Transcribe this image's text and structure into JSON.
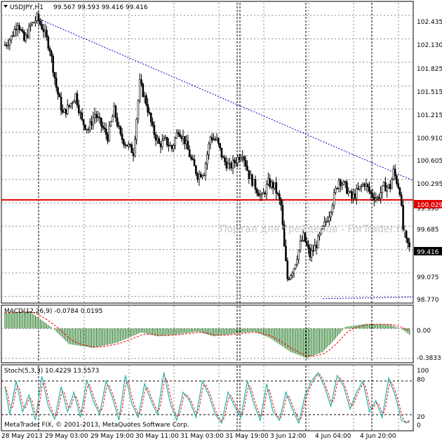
{
  "main": {
    "symbol": "USDJPY,H1",
    "ohlc": "99.567 99.593 99.416 99.416",
    "watermark": "Портал для трейдеров - ForTrader.ru",
    "price_labels": [
      "102.435",
      "102.130",
      "101.825",
      "101.515",
      "101.215",
      "100.910",
      "100.605",
      "100.295",
      "99.990",
      "99.685",
      "99.380",
      "99.075",
      "98.770"
    ],
    "hline": {
      "value": 100.029,
      "label": "100.029",
      "color": "#e00000"
    },
    "last": {
      "value": 99.416,
      "label": "99.416"
    },
    "trendline_upper": {
      "from": 102.4,
      "to": 100.28,
      "color": "#0000c0"
    },
    "trendline_lower": {
      "from": 98.74,
      "to": 98.76,
      "color": "#0000c0"
    }
  },
  "macd": {
    "title": "MACD(12,26,9) -0.0784 0.0195",
    "levels": [
      "0.00",
      "-0.3833"
    ],
    "bar_color": "#006400",
    "signal_color": "#ff0000"
  },
  "stoch": {
    "title": "Stoch(5,3,3) 10.4229 13.5573",
    "levels": [
      "100",
      "80",
      "20",
      "0"
    ],
    "main_color": "#20b2aa",
    "signal_color": "#ff0000"
  },
  "copyright": "MetaTrader FIX, © 2001-2013, MetaQuotes Software Corp.",
  "time_labels": [
    "28 May 2013",
    "29 May 03:00",
    "29 May 19:00",
    "30 May 11:00",
    "31 May 03:00",
    "31 May 19:00",
    "3 Jun 12:00",
    "4 Jun 04:00",
    "4 Jun 20:00"
  ],
  "chart_data": {
    "type": "candlestick",
    "title": "USDJPY,H1",
    "ylim": [
      98.7,
      102.6
    ],
    "anchors": [
      [
        0,
        102.05
      ],
      [
        4,
        102.15
      ],
      [
        8,
        102.35
      ],
      [
        12,
        102.1
      ],
      [
        16,
        102.3
      ],
      [
        20,
        102.4
      ],
      [
        24,
        102.25
      ],
      [
        28,
        102.0
      ],
      [
        32,
        101.5
      ],
      [
        36,
        101.15
      ],
      [
        40,
        101.25
      ],
      [
        44,
        101.4
      ],
      [
        48,
        101.05
      ],
      [
        52,
        100.95
      ],
      [
        56,
        101.15
      ],
      [
        60,
        101.0
      ],
      [
        64,
        100.85
      ],
      [
        68,
        101.2
      ],
      [
        72,
        100.85
      ],
      [
        76,
        100.75
      ],
      [
        80,
        100.65
      ],
      [
        84,
        101.55
      ],
      [
        88,
        101.3
      ],
      [
        92,
        100.95
      ],
      [
        96,
        100.75
      ],
      [
        100,
        100.8
      ],
      [
        104,
        100.7
      ],
      [
        108,
        100.95
      ],
      [
        112,
        100.8
      ],
      [
        116,
        100.55
      ],
      [
        120,
        100.35
      ],
      [
        124,
        100.4
      ],
      [
        128,
        100.85
      ],
      [
        132,
        100.8
      ],
      [
        136,
        100.55
      ],
      [
        140,
        100.45
      ],
      [
        144,
        100.55
      ],
      [
        148,
        100.65
      ],
      [
        152,
        100.35
      ],
      [
        156,
        100.2
      ],
      [
        160,
        100.05
      ],
      [
        164,
        100.25
      ],
      [
        168,
        100.2
      ],
      [
        172,
        99.95
      ],
      [
        174,
        99.4
      ],
      [
        176,
        99.0
      ],
      [
        180,
        99.15
      ],
      [
        184,
        99.45
      ],
      [
        186,
        99.55
      ],
      [
        190,
        99.3
      ],
      [
        194,
        99.45
      ],
      [
        198,
        99.65
      ],
      [
        202,
        99.85
      ],
      [
        204,
        100.0
      ],
      [
        208,
        100.3
      ],
      [
        212,
        100.2
      ],
      [
        216,
        100.05
      ],
      [
        220,
        100.15
      ],
      [
        224,
        100.25
      ],
      [
        228,
        100.1
      ],
      [
        232,
        100.05
      ],
      [
        236,
        100.2
      ],
      [
        240,
        100.2
      ],
      [
        242,
        100.4
      ],
      [
        246,
        100.15
      ],
      [
        248,
        99.65
      ],
      [
        250,
        99.48
      ],
      [
        252,
        99.416
      ]
    ],
    "macd_anchors": [
      [
        0,
        0.2
      ],
      [
        15,
        0.22
      ],
      [
        20,
        0.15
      ],
      [
        30,
        0.0
      ],
      [
        40,
        -0.2
      ],
      [
        55,
        -0.25
      ],
      [
        70,
        -0.18
      ],
      [
        85,
        -0.05
      ],
      [
        95,
        -0.1
      ],
      [
        105,
        -0.08
      ],
      [
        120,
        -0.04
      ],
      [
        130,
        -0.1
      ],
      [
        145,
        -0.06
      ],
      [
        155,
        -0.04
      ],
      [
        165,
        -0.12
      ],
      [
        178,
        -0.3
      ],
      [
        188,
        -0.38
      ],
      [
        198,
        -0.3
      ],
      [
        205,
        -0.15
      ],
      [
        212,
        0.02
      ],
      [
        225,
        0.06
      ],
      [
        240,
        0.05
      ],
      [
        248,
        -0.02
      ],
      [
        252,
        -0.0784
      ]
    ],
    "macd_ylim": [
      -0.42,
      0.28
    ],
    "stoch_anchors": [
      [
        0,
        70
      ],
      [
        3,
        20
      ],
      [
        7,
        80
      ],
      [
        11,
        25
      ],
      [
        15,
        55
      ],
      [
        19,
        10
      ],
      [
        23,
        88
      ],
      [
        27,
        35
      ],
      [
        31,
        12
      ],
      [
        35,
        70
      ],
      [
        39,
        25
      ],
      [
        43,
        60
      ],
      [
        47,
        15
      ],
      [
        51,
        82
      ],
      [
        55,
        45
      ],
      [
        59,
        20
      ],
      [
        63,
        80
      ],
      [
        67,
        50
      ],
      [
        71,
        10
      ],
      [
        75,
        90
      ],
      [
        79,
        40
      ],
      [
        83,
        15
      ],
      [
        87,
        75
      ],
      [
        91,
        45
      ],
      [
        95,
        20
      ],
      [
        99,
        95
      ],
      [
        103,
        40
      ],
      [
        107,
        10
      ],
      [
        111,
        60
      ],
      [
        115,
        45
      ],
      [
        119,
        15
      ],
      [
        123,
        80
      ],
      [
        127,
        55
      ],
      [
        131,
        20
      ],
      [
        135,
        5
      ],
      [
        139,
        60
      ],
      [
        143,
        35
      ],
      [
        147,
        15
      ],
      [
        151,
        80
      ],
      [
        155,
        40
      ],
      [
        159,
        10
      ],
      [
        163,
        75
      ],
      [
        167,
        25
      ],
      [
        171,
        10
      ],
      [
        175,
        60
      ],
      [
        179,
        30
      ],
      [
        183,
        5
      ],
      [
        187,
        55
      ],
      [
        191,
        80
      ],
      [
        195,
        95
      ],
      [
        199,
        70
      ],
      [
        203,
        35
      ],
      [
        207,
        90
      ],
      [
        211,
        70
      ],
      [
        215,
        30
      ],
      [
        219,
        60
      ],
      [
        223,
        80
      ],
      [
        227,
        25
      ],
      [
        231,
        45
      ],
      [
        235,
        15
      ],
      [
        239,
        85
      ],
      [
        243,
        55
      ],
      [
        247,
        10
      ],
      [
        250,
        5
      ],
      [
        252,
        10
      ]
    ],
    "stoch_ylim": [
      -5,
      105
    ]
  }
}
